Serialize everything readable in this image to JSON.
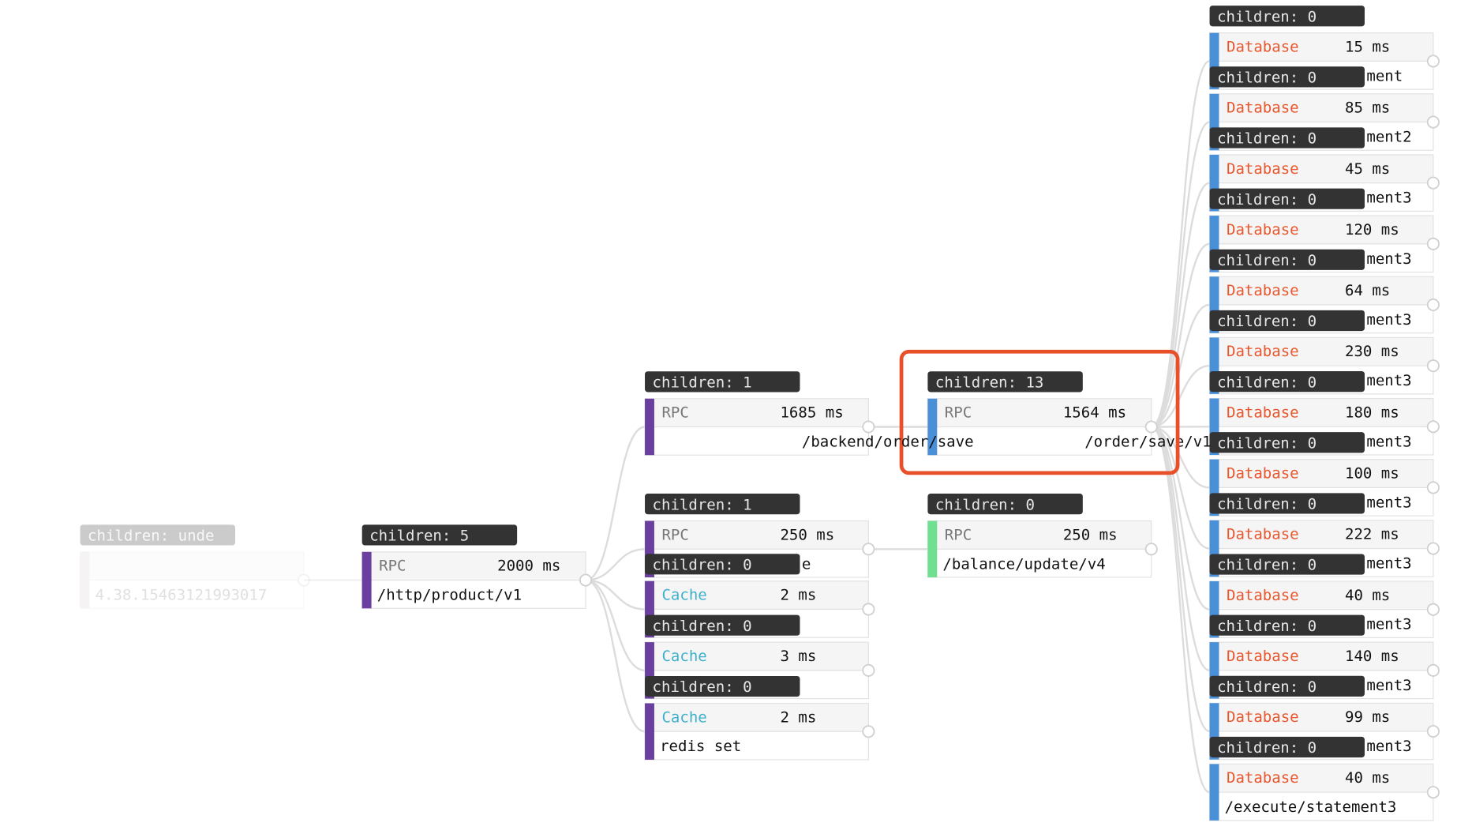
{
  "tree": {
    "badge": "children: unde",
    "path": "4.38.15463121993017",
    "color": "#d9d2d6",
    "faded": true,
    "nodes": [
      {
        "badge": "children: 5",
        "type": "RPC",
        "type_color": "#777777",
        "duration": "2000 ms",
        "path": "/http/product/v1",
        "color": "#6a3fa0",
        "nodes": [
          {
            "badge": "children: 1",
            "type": "RPC",
            "type_color": "#777777",
            "duration": "1685 ms",
            "path": "/backend/order/save",
            "color": "#6a3fa0",
            "nodes": [
              {
                "badge": "children: 13",
                "type": "RPC",
                "type_color": "#777777",
                "duration": "1564 ms",
                "path": "/order/save/v1",
                "color": "#4a90d9",
                "highlight": true,
                "nodes": [
                  {
                    "badge": "children: 0",
                    "type": "Database",
                    "type_color": "#e8572e",
                    "duration": "15 ms",
                    "path": "ment",
                    "color": "#4a90d9"
                  },
                  {
                    "badge": "children: 0",
                    "type": "Database",
                    "type_color": "#e8572e",
                    "duration": "85 ms",
                    "path": "ment2",
                    "color": "#4a90d9"
                  },
                  {
                    "badge": "children: 0",
                    "type": "Database",
                    "type_color": "#e8572e",
                    "duration": "45 ms",
                    "path": "ment3",
                    "color": "#4a90d9"
                  },
                  {
                    "badge": "children: 0",
                    "type": "Database",
                    "type_color": "#e8572e",
                    "duration": "120 ms",
                    "path": "ment3",
                    "color": "#4a90d9"
                  },
                  {
                    "badge": "children: 0",
                    "type": "Database",
                    "type_color": "#e8572e",
                    "duration": "64 ms",
                    "path": "ment3",
                    "color": "#4a90d9"
                  },
                  {
                    "badge": "children: 0",
                    "type": "Database",
                    "type_color": "#e8572e",
                    "duration": "230 ms",
                    "path": "ment3",
                    "color": "#4a90d9"
                  },
                  {
                    "badge": "children: 0",
                    "type": "Database",
                    "type_color": "#e8572e",
                    "duration": "180 ms",
                    "path": "ment3",
                    "color": "#4a90d9"
                  },
                  {
                    "badge": "children: 0",
                    "type": "Database",
                    "type_color": "#e8572e",
                    "duration": "100 ms",
                    "path": "ment3",
                    "color": "#4a90d9"
                  },
                  {
                    "badge": "children: 0",
                    "type": "Database",
                    "type_color": "#e8572e",
                    "duration": "222 ms",
                    "path": "ment3",
                    "color": "#4a90d9"
                  },
                  {
                    "badge": "children: 0",
                    "type": "Database",
                    "type_color": "#e8572e",
                    "duration": "40 ms",
                    "path": "ment3",
                    "color": "#4a90d9"
                  },
                  {
                    "badge": "children: 0",
                    "type": "Database",
                    "type_color": "#e8572e",
                    "duration": "140 ms",
                    "path": "ment3",
                    "color": "#4a90d9"
                  },
                  {
                    "badge": "children: 0",
                    "type": "Database",
                    "type_color": "#e8572e",
                    "duration": "99 ms",
                    "path": "ment3",
                    "color": "#4a90d9"
                  },
                  {
                    "badge": "children: 0",
                    "type": "Database",
                    "type_color": "#e8572e",
                    "duration": "40 ms",
                    "path": "/execute/statement3",
                    "color": "#4a90d9"
                  }
                ]
              }
            ]
          },
          {
            "badge": "children: 1",
            "type": "RPC",
            "type_color": "#777777",
            "duration": "250 ms",
            "path": "e",
            "color": "#6a3fa0",
            "nodes": [
              {
                "badge": "children: 0",
                "type": "RPC",
                "type_color": "#777777",
                "duration": "250 ms",
                "path": "/balance/update/v4",
                "color": "#6ee08f"
              }
            ]
          },
          {
            "badge": "children: 0",
            "type": "Cache",
            "type_color": "#3fb0cc",
            "duration": "2 ms",
            "color": "#6a3fa0"
          },
          {
            "badge": "children: 0",
            "type": "Cache",
            "type_color": "#3fb0cc",
            "duration": "3 ms",
            "color": "#6a3fa0"
          },
          {
            "badge": "children: 0",
            "type": "Cache",
            "type_color": "#3fb0cc",
            "duration": "2 ms",
            "path": "redis set",
            "color": "#6a3fa0"
          }
        ]
      }
    ]
  }
}
